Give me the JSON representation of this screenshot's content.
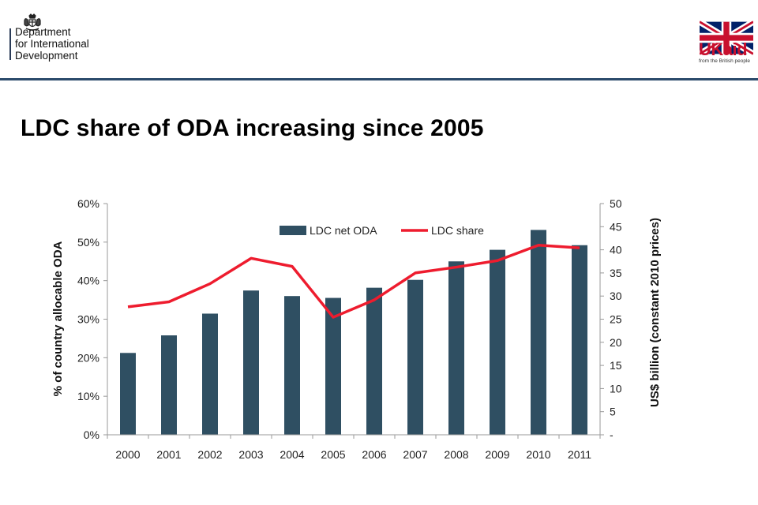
{
  "header": {
    "org_lines": [
      "Department",
      "for International",
      "Development"
    ],
    "ukaid": {
      "mark": "UKaid",
      "tagline": "from the British people",
      "flag_icon": "union-jack-icon"
    },
    "crest_icon": "royal-coat-of-arms-icon",
    "rule_color": "#2b4a6b"
  },
  "slide": {
    "title": "LDC share of ODA increasing since 2005"
  },
  "chart_data": {
    "type": "bar",
    "categories": [
      "2000",
      "2001",
      "2002",
      "2003",
      "2004",
      "2005",
      "2006",
      "2007",
      "2008",
      "2009",
      "2010",
      "2011"
    ],
    "series": [
      {
        "name": "LDC net ODA",
        "type": "bar",
        "axis": "right",
        "color": "#2f4f62",
        "values": [
          17.7,
          21.5,
          26.2,
          31.2,
          30.0,
          29.6,
          31.8,
          33.5,
          37.5,
          40.0,
          44.3,
          41.0
        ]
      },
      {
        "name": "LDC share",
        "type": "line",
        "axis": "left",
        "color": "#ee1c2e",
        "values": [
          0.332,
          0.345,
          0.392,
          0.458,
          0.437,
          0.305,
          0.35,
          0.42,
          0.435,
          0.452,
          0.492,
          0.485
        ]
      }
    ],
    "y_left": {
      "label": "% of country allocable ODA",
      "ylim": [
        0,
        0.6
      ],
      "ticks": [
        0,
        0.1,
        0.2,
        0.3,
        0.4,
        0.5,
        0.6
      ],
      "tick_labels": [
        "0%",
        "10%",
        "20%",
        "30%",
        "40%",
        "50%",
        "60%"
      ]
    },
    "y_right": {
      "label": "US$ billion (constant 2010 prices)",
      "ylim": [
        0,
        50
      ],
      "ticks": [
        0,
        5,
        10,
        15,
        20,
        25,
        30,
        35,
        40,
        45,
        50
      ],
      "tick_labels": [
        "-",
        "5",
        "10",
        "15",
        "20",
        "25",
        "30",
        "35",
        "40",
        "45",
        "50"
      ]
    },
    "grid": false,
    "legend": "top-center"
  }
}
